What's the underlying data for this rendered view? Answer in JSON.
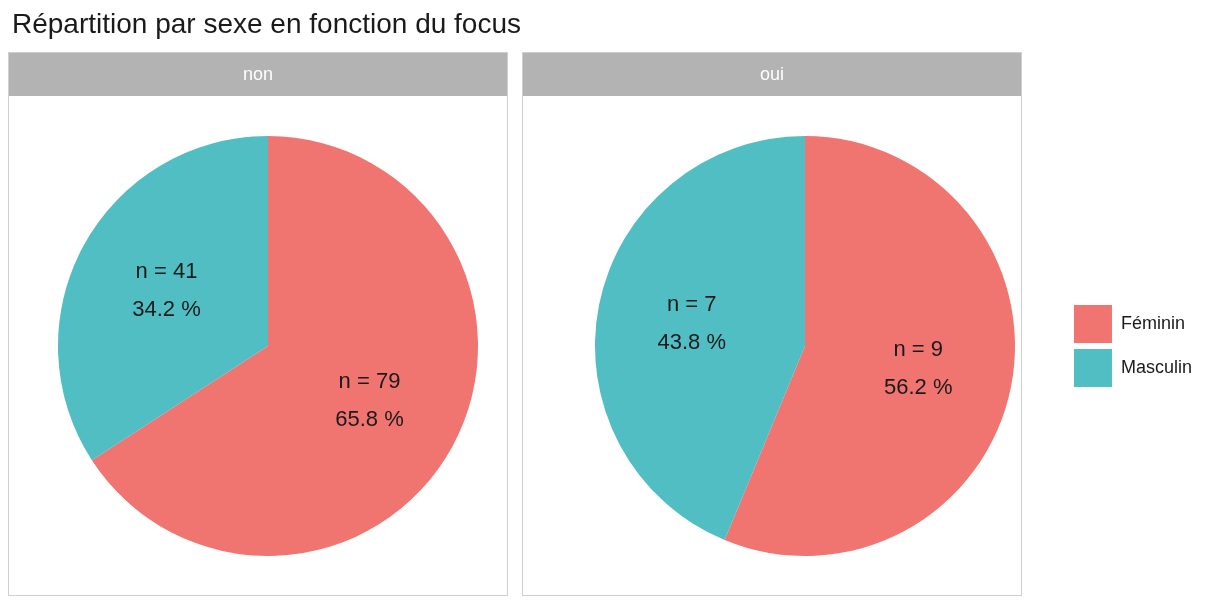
{
  "chart_data": [
    {
      "type": "pie",
      "title": "Répartition par sexe en fonction du focus",
      "subtitle": "non",
      "categories": [
        null,
        null
      ],
      "values": [
        79,
        41
      ],
      "colors": [
        "#f07470",
        "#50bec3"
      ],
      "value_labels": [
        "n = 79\n65.8 %",
        "n = 41\n34.2 %"
      ]
    },
    {
      "type": "pie",
      "subtitle": "oui",
      "categories": [
        "Féminin",
        "Masculin"
      ],
      "values": [
        9,
        7
      ],
      "colors": [
        "#f07470",
        "#50bec3"
      ],
      "value_labels": [
        "n = 9\n56.2 %",
        "n = 7\n43.8 %"
      ],
      "legend": "right"
    }
  ]
}
